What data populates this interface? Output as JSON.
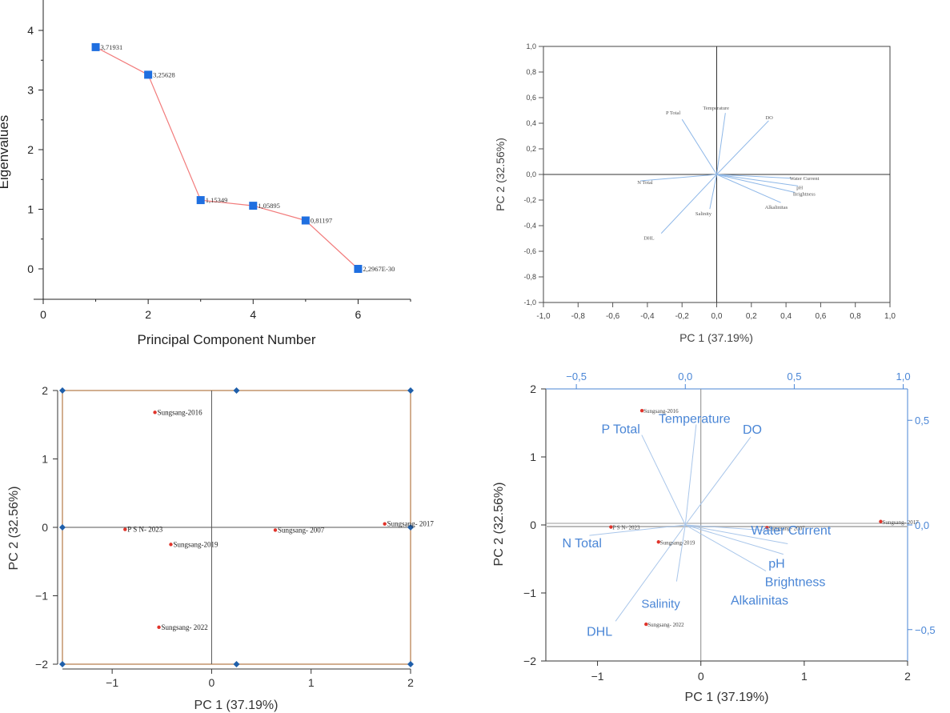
{
  "chart_data": [
    {
      "type": "line",
      "xlabel": "Principal Component Number",
      "ylabel": "Eigenvalues",
      "xlim": [
        0,
        7
      ],
      "ylim": [
        -0.5,
        4.5
      ],
      "xticks": [
        "0",
        "2",
        "4",
        "6"
      ],
      "yticks": [
        "0",
        "1",
        "2",
        "3",
        "4"
      ],
      "x": [
        1,
        2,
        3,
        4,
        5,
        6
      ],
      "values": [
        3.71931,
        3.25628,
        1.15349,
        1.05895,
        0.81197,
        0
      ],
      "point_labels": [
        "3,71931",
        "3,25628",
        "1,15349",
        "1,05895",
        "0,81197",
        "2,2967E-30"
      ],
      "line_color": "#f27b7b",
      "marker_color": "#1f6fe0"
    },
    {
      "type": "scatter",
      "subtype": "loading-plot",
      "xlabel": "PC 1 (37.19%)",
      "ylabel": "PC 2 (32.56%)",
      "xlim": [
        -1.0,
        1.0
      ],
      "ylim": [
        -1.0,
        1.0
      ],
      "xticks": [
        "-1,0",
        "-0,8",
        "-0,6",
        "-0,4",
        "-0,2",
        "0,0",
        "0,2",
        "0,4",
        "0,6",
        "0,8",
        "1,0"
      ],
      "yticks": [
        "1,0",
        "0,8",
        "0,6",
        "0,4",
        "0,2",
        "0,0",
        "-0,2",
        "-0,4",
        "-0,6",
        "-0,8",
        "-1,0"
      ],
      "vectors": [
        {
          "label": "P Total",
          "x": -0.2,
          "y": 0.43
        },
        {
          "label": "Temperature",
          "x": 0.05,
          "y": 0.48
        },
        {
          "label": "DO",
          "x": 0.3,
          "y": 0.42
        },
        {
          "label": "Water Current",
          "x": 0.43,
          "y": -0.03
        },
        {
          "label": "pH",
          "x": 0.47,
          "y": -0.09
        },
        {
          "label": "Brightness",
          "x": 0.45,
          "y": -0.14
        },
        {
          "label": "Alkalinitas",
          "x": 0.37,
          "y": -0.22
        },
        {
          "label": "N Total",
          "x": -0.44,
          "y": -0.05
        },
        {
          "label": "Salinity",
          "x": -0.04,
          "y": -0.27
        },
        {
          "label": "DHL",
          "x": -0.32,
          "y": -0.46
        }
      ],
      "vector_color": "#8fb8e8"
    },
    {
      "type": "scatter",
      "subtype": "score-plot",
      "xlabel": "PC 1 (37.19%)",
      "ylabel": "PC 2 (32.56%)",
      "xlim": [
        -1.5,
        2.0
      ],
      "ylim": [
        -2.0,
        2.0
      ],
      "xticks": [
        "-1",
        "0",
        "1",
        "2"
      ],
      "yticks": [
        "2",
        "1",
        "0",
        "-1",
        "-2"
      ],
      "points": [
        {
          "label": "Sungsang-2016",
          "x": -0.57,
          "y": 1.68
        },
        {
          "label": "P S N- 2023",
          "x": -0.87,
          "y": -0.03
        },
        {
          "label": "Sungsang-2019",
          "x": -0.41,
          "y": -0.25
        },
        {
          "label": "Sungsang- 2007",
          "x": 0.64,
          "y": -0.04
        },
        {
          "label": "Sungsang- 2017",
          "x": 1.74,
          "y": 0.05
        },
        {
          "label": "Sungsang- 2022",
          "x": -0.53,
          "y": -1.46
        }
      ],
      "point_color": "#e0342b",
      "frame_color": "#b98454",
      "corner_marker_color": "#1f5faa"
    },
    {
      "type": "scatter",
      "subtype": "biplot",
      "xlabel": "PC 1 (37.19%)",
      "ylabel": "PC 2 (32.56%)",
      "xlim": [
        -1.5,
        2.0
      ],
      "ylim": [
        -2.0,
        2.0
      ],
      "xticks": [
        "-1",
        "0",
        "1",
        "2"
      ],
      "yticks": [
        "2",
        "1",
        "0",
        "-1",
        "-2"
      ],
      "top_xlim": [
        -0.64,
        1.02
      ],
      "top_xticks": [
        "-0,5",
        "0,0",
        "0,5",
        "1,0"
      ],
      "right_ylim": [
        -0.65,
        0.65
      ],
      "right_yticks": [
        "0,5",
        "0,0",
        "-0,5"
      ],
      "points": [
        {
          "label": "Sungsang-2016",
          "x": -0.57,
          "y": 1.68
        },
        {
          "label": "P S N- 2023",
          "x": -0.87,
          "y": -0.03
        },
        {
          "label": "Sungsang-2019",
          "x": -0.41,
          "y": -0.25
        },
        {
          "label": "Sungsang- 2007",
          "x": 0.64,
          "y": -0.04
        },
        {
          "label": "Sungsang- 2017",
          "x": 1.74,
          "y": 0.05
        },
        {
          "label": "Sungsang- 2022",
          "x": -0.53,
          "y": -1.46
        }
      ],
      "vectors": [
        {
          "label": "P Total",
          "x": -0.2,
          "y": 0.43
        },
        {
          "label": "Temperature",
          "x": 0.05,
          "y": 0.48
        },
        {
          "label": "DO",
          "x": 0.3,
          "y": 0.42
        },
        {
          "label": "Water Current",
          "x": 0.43,
          "y": -0.03
        },
        {
          "label": "pH",
          "x": 0.47,
          "y": -0.09
        },
        {
          "label": "Brightness",
          "x": 0.45,
          "y": -0.14
        },
        {
          "label": "Alkalinitas",
          "x": 0.37,
          "y": -0.22
        },
        {
          "label": "N Total",
          "x": -0.44,
          "y": -0.05
        },
        {
          "label": "Salinity",
          "x": -0.04,
          "y": -0.27
        },
        {
          "label": "DHL",
          "x": -0.32,
          "y": -0.46
        }
      ],
      "vector_color": "#a9c6ea",
      "label_color": "#4a86d6",
      "point_color": "#e0342b",
      "secondary_axis_color": "#4a86d6"
    }
  ]
}
